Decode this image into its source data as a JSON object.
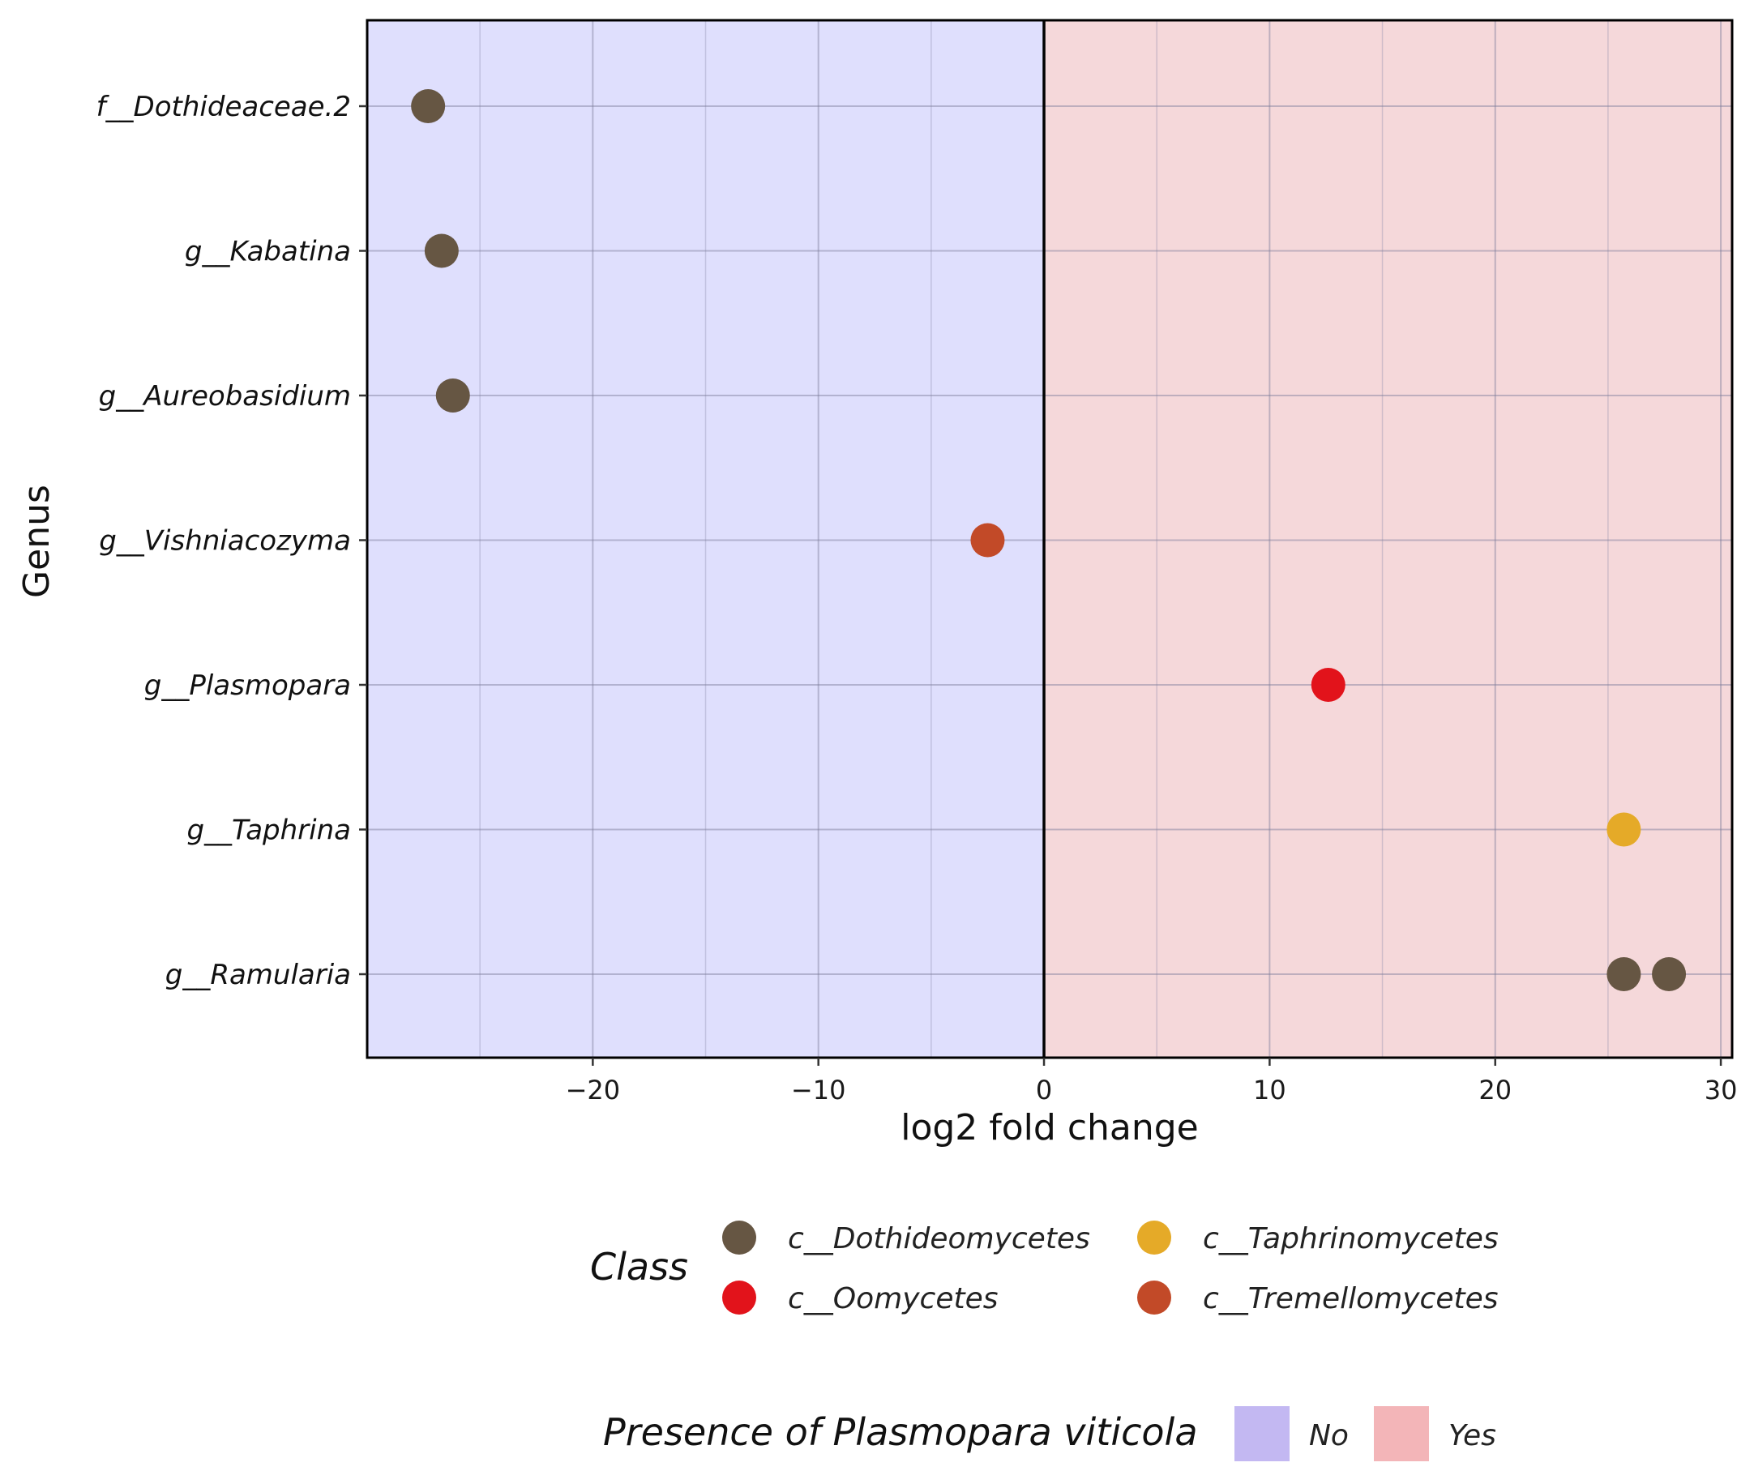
{
  "chart_data": {
    "type": "scatter",
    "xlabel": "log2 fold change",
    "ylabel": "Genus",
    "xlim": [
      -30,
      30.5
    ],
    "x_ticks": [
      -20,
      -10,
      0,
      10,
      20,
      30
    ],
    "x_tick_labels": [
      "−20",
      "−10",
      "0",
      "10",
      "20",
      "30"
    ],
    "x_minor_gridlines": [
      -25,
      -15,
      -5,
      5,
      15,
      25
    ],
    "zero_line": 0,
    "categories": [
      "f__Dothideaceae.2",
      "g__Kabatina",
      "g__Aureobasidium",
      "g__Vishniacozyma",
      "g__Plasmopara",
      "g__Taphrina",
      "g__Ramularia"
    ],
    "points": [
      {
        "genus": "f__Dothideaceae.2",
        "x": -27.3,
        "class": "c__Dothideomycetes"
      },
      {
        "genus": "g__Kabatina",
        "x": -26.7,
        "class": "c__Dothideomycetes"
      },
      {
        "genus": "g__Aureobasidium",
        "x": -26.2,
        "class": "c__Dothideomycetes"
      },
      {
        "genus": "g__Vishniacozyma",
        "x": -2.5,
        "class": "c__Tremellomycetes"
      },
      {
        "genus": "g__Plasmopara",
        "x": 12.6,
        "class": "c__Oomycetes"
      },
      {
        "genus": "g__Taphrina",
        "x": 25.7,
        "class": "c__Taphrinomycetes"
      },
      {
        "genus": "g__Ramularia",
        "x": 25.7,
        "class": "c__Dothideomycetes"
      },
      {
        "genus": "g__Ramularia",
        "x": 27.7,
        "class": "c__Dothideomycetes"
      }
    ],
    "background_regions": [
      {
        "label": "No",
        "from": -30,
        "to": 0,
        "color": "#dfdffd"
      },
      {
        "label": "Yes",
        "from": 0,
        "to": 30.5,
        "color": "#f5d8da"
      }
    ],
    "legend_class": {
      "title": "Class",
      "items": [
        {
          "label": "c__Dothideomycetes",
          "color": "#665643"
        },
        {
          "label": "c__Taphrinomycetes",
          "color": "#e5aa28"
        },
        {
          "label": "c__Oomycetes",
          "color": "#e2131b"
        },
        {
          "label": "c__Tremellomycetes",
          "color": "#c24a28"
        }
      ]
    },
    "legend_presence": {
      "title": "Presence of Plasmopara viticola",
      "items": [
        {
          "label": "No",
          "color": "#c3b8f2"
        },
        {
          "label": "Yes",
          "color": "#f3b5b8"
        }
      ]
    },
    "grid": true,
    "legend_position": "bottom"
  }
}
